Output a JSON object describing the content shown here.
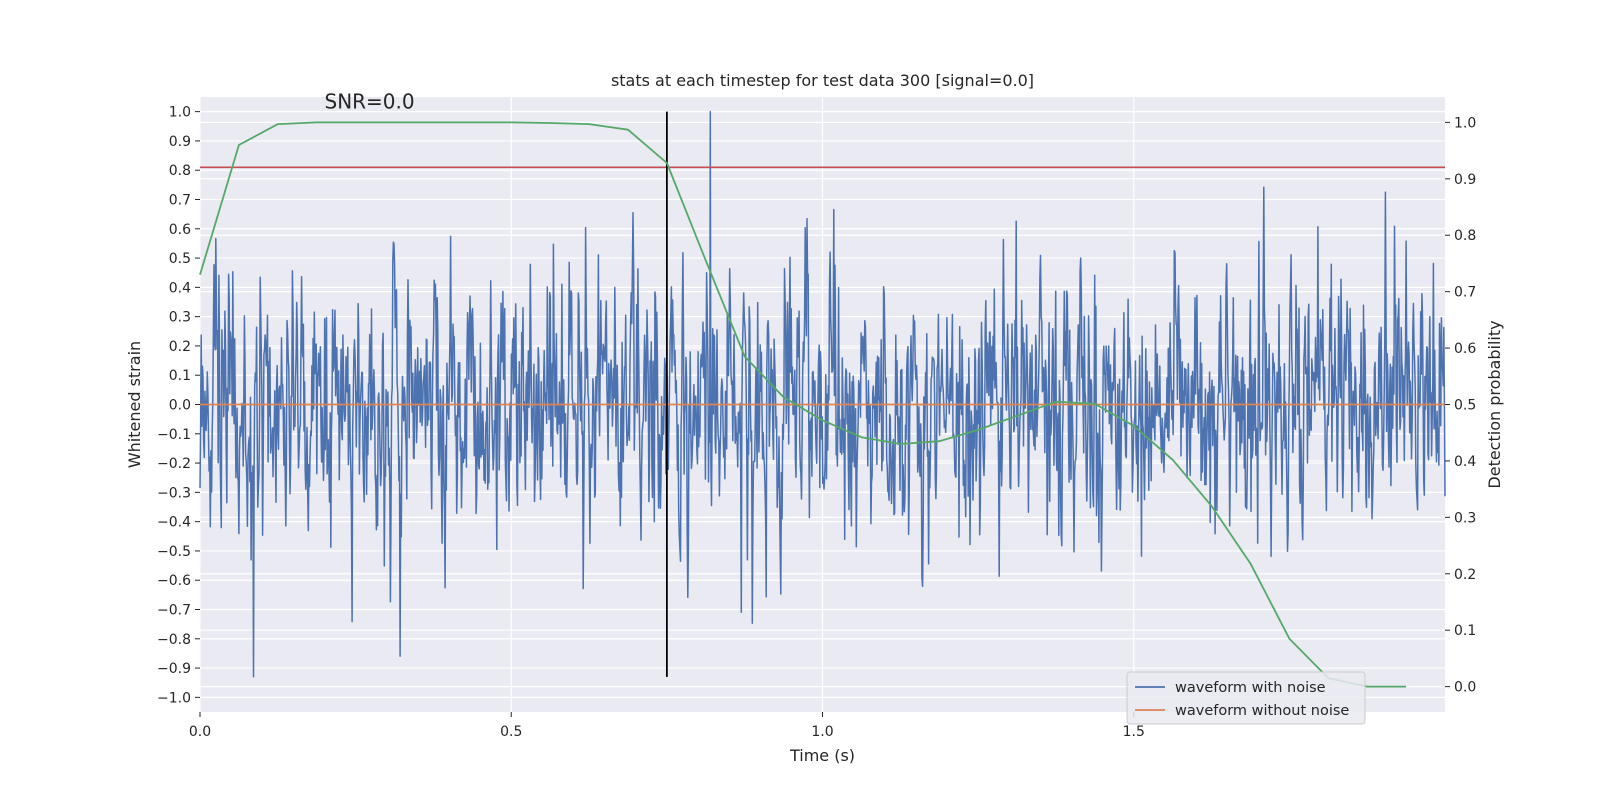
{
  "chart_data": {
    "type": "line",
    "title": "stats at each timestep for test data 300 [signal=0.0]",
    "xlabel": "Time (s)",
    "ylabel_left": "Whitened strain",
    "ylabel_right": "Detection probability",
    "xlim": [
      0.0,
      2.0
    ],
    "ylim_left": [
      -1.05,
      1.05
    ],
    "ylim_right": [
      -0.045,
      1.045
    ],
    "x_ticks": [
      0.0,
      0.5,
      1.0,
      1.5
    ],
    "x_tick_labels": [
      "0.0",
      "0.5",
      "1.0",
      "1.5"
    ],
    "y_ticks_left": [
      1.0,
      0.9,
      0.8,
      0.7,
      0.6,
      0.5,
      0.4,
      0.3,
      0.2,
      0.1,
      0.0,
      -0.1,
      -0.2,
      -0.3,
      -0.4,
      -0.5,
      -0.6,
      -0.7,
      -0.8,
      -0.9,
      -1.0
    ],
    "y_tick_labels_left": [
      "1.0",
      "0.9",
      "0.8",
      "0.7",
      "0.6",
      "0.5",
      "0.4",
      "0.3",
      "0.2",
      "0.1",
      "0.0",
      "−0.1",
      "−0.2",
      "−0.3",
      "−0.4",
      "−0.5",
      "−0.6",
      "−0.7",
      "−0.8",
      "−0.9",
      "−1.0"
    ],
    "y_ticks_right": [
      1.0,
      0.9,
      0.8,
      0.7,
      0.6,
      0.5,
      0.4,
      0.3,
      0.2,
      0.1,
      0.0
    ],
    "y_tick_labels_right": [
      "1.0",
      "0.9",
      "0.8",
      "0.7",
      "0.6",
      "0.5",
      "0.4",
      "0.3",
      "0.2",
      "0.1",
      "0.0"
    ],
    "grid": true,
    "annotation": {
      "text": "SNR=0.0",
      "x": 0.2,
      "y": 1.01
    },
    "legend": {
      "placement": "lower-right",
      "entries": [
        "waveform with noise",
        "waveform without noise"
      ]
    },
    "series": [
      {
        "name": "waveform with noise",
        "axis": "left",
        "color": "#4c72b0",
        "style": "dense noise, amplitude ~0.35 std, peak 1.0 at t=0.82",
        "t_range": [
          0.0,
          2.0
        ]
      },
      {
        "name": "waveform without noise",
        "axis": "left",
        "color": "#dd8452",
        "x": [
          0.0,
          2.0
        ],
        "y": [
          0.0,
          0.0
        ]
      },
      {
        "name": "Detection probability",
        "axis": "right",
        "color": "#55a868",
        "x": [
          0.0,
          0.0625,
          0.125,
          0.1875,
          0.25,
          0.3125,
          0.375,
          0.4375,
          0.5,
          0.5625,
          0.625,
          0.6875,
          0.75,
          0.8125,
          0.875,
          0.9375,
          1.0,
          1.0625,
          1.125,
          1.1875,
          1.25,
          1.3125,
          1.375,
          1.4375,
          1.5,
          1.5625,
          1.625,
          1.6875,
          1.75,
          1.8125,
          1.875,
          1.9375
        ],
        "y": [
          0.73,
          0.96,
          0.997,
          1.0,
          1.0,
          1.0,
          1.0,
          1.0,
          1.0,
          0.999,
          0.997,
          0.987,
          0.928,
          0.755,
          0.585,
          0.513,
          0.472,
          0.442,
          0.43,
          0.435,
          0.455,
          0.48,
          0.505,
          0.501,
          0.462,
          0.402,
          0.32,
          0.218,
          0.085,
          0.015,
          0.0,
          0.0
        ]
      }
    ],
    "reference_lines": [
      {
        "kind": "horizontal",
        "axis": "left",
        "y": 0.81,
        "color": "#c44e52"
      },
      {
        "kind": "vertical",
        "x": 0.75,
        "y_from": -0.93,
        "y_to": 1.0,
        "color": "#000000"
      }
    ]
  }
}
